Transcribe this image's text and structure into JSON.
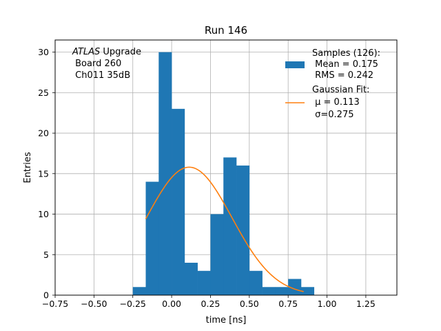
{
  "chart_data": {
    "type": "bar",
    "title": "Run 146",
    "xlabel": "time [ns]",
    "ylabel": "Entries",
    "xlim": [
      -0.75,
      1.45
    ],
    "ylim": [
      0,
      31.5
    ],
    "grid": true,
    "x_ticks": [
      -0.75,
      -0.5,
      -0.25,
      0.0,
      0.25,
      0.5,
      0.75,
      1.0,
      1.25
    ],
    "x_tick_labels": [
      "−0.75",
      "−0.50",
      "−0.25",
      "0.00",
      "0.25",
      "0.50",
      "0.75",
      "1.00",
      "1.25"
    ],
    "y_ticks": [
      0,
      5,
      10,
      15,
      20,
      25,
      30
    ],
    "y_tick_labels": [
      "0",
      "5",
      "10",
      "15",
      "20",
      "25",
      "30"
    ],
    "bin_width": 0.0833,
    "histogram": {
      "name": "Samples (126):",
      "color": "#1f77b4",
      "bin_left_edges": [
        -0.25,
        -0.1667,
        -0.0833,
        0.0,
        0.0833,
        0.1667,
        0.25,
        0.3333,
        0.4167,
        0.5,
        0.5833,
        0.6667,
        0.75,
        0.8333
      ],
      "counts": [
        1,
        14,
        30,
        23,
        4,
        3,
        10,
        17,
        16,
        3,
        1,
        1,
        2,
        1
      ]
    },
    "fit": {
      "name": "Gaussian Fit:",
      "color": "#ff7f0e",
      "mu": 0.113,
      "sigma": 0.275,
      "amplitude": 15.8,
      "x_range": [
        -0.167,
        0.85
      ]
    },
    "legend": {
      "position": "upper-right",
      "hist_lines": [
        "Samples (126):",
        " Mean = 0.175",
        " RMS = 0.242"
      ],
      "fit_lines": [
        "Gaussian Fit:",
        " μ = 0.113",
        " σ=0.275"
      ]
    },
    "annotation": {
      "position": "upper-left",
      "italic_word": "ATLAS",
      "line1_rest": " Upgrade",
      "line2": " Board 260",
      "line3": " Ch011 35dB"
    }
  }
}
